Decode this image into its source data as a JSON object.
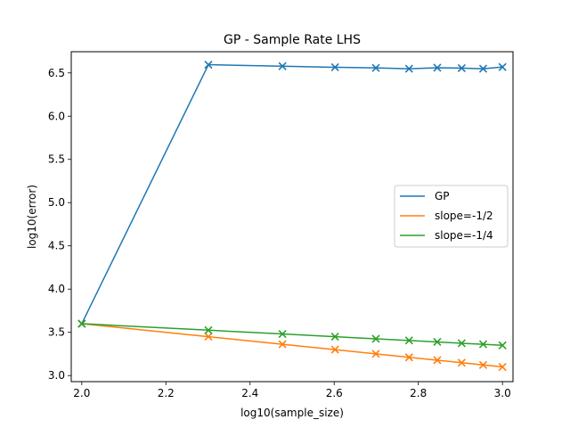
{
  "chart_data": {
    "type": "line",
    "title": "GP - Sample Rate LHS",
    "xlabel": "log10(sample_size)",
    "ylabel": "log10(error)",
    "xlim": [
      1.975,
      3.025
    ],
    "ylim": [
      2.93,
      6.745
    ],
    "x_ticks": [
      2.0,
      2.2,
      2.4,
      2.6,
      2.8,
      3.0
    ],
    "x_tick_labels": [
      "2.0",
      "2.2",
      "2.4",
      "2.6",
      "2.8",
      "3.0"
    ],
    "y_ticks": [
      3.0,
      3.5,
      4.0,
      4.5,
      5.0,
      5.5,
      6.0,
      6.5
    ],
    "y_tick_labels": [
      "3.0",
      "3.5",
      "4.0",
      "4.5",
      "5.0",
      "5.5",
      "6.0",
      "6.5"
    ],
    "grid": false,
    "legend_position": "center-right",
    "marker": "x",
    "x": [
      2.0,
      2.301,
      2.477,
      2.602,
      2.699,
      2.778,
      2.845,
      2.903,
      2.954,
      3.0
    ],
    "series": [
      {
        "name": "GP",
        "color": "#1f77b4",
        "values": [
          3.6,
          6.595,
          6.578,
          6.565,
          6.558,
          6.548,
          6.56,
          6.555,
          6.548,
          6.568
        ]
      },
      {
        "name": "slope=-1/2",
        "color": "#ff7f0e",
        "values": [
          3.6,
          3.45,
          3.362,
          3.3,
          3.251,
          3.211,
          3.178,
          3.149,
          3.123,
          3.1
        ]
      },
      {
        "name": "slope=-1/4",
        "color": "#2ca02c",
        "values": [
          3.6,
          3.525,
          3.481,
          3.45,
          3.425,
          3.406,
          3.389,
          3.374,
          3.362,
          3.35
        ]
      }
    ]
  }
}
